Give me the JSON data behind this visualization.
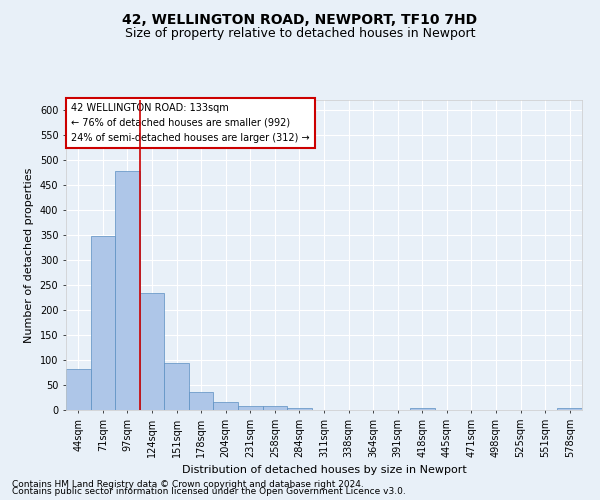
{
  "title_line1": "42, WELLINGTON ROAD, NEWPORT, TF10 7HD",
  "title_line2": "Size of property relative to detached houses in Newport",
  "xlabel": "Distribution of detached houses by size in Newport",
  "ylabel": "Number of detached properties",
  "categories": [
    "44sqm",
    "71sqm",
    "97sqm",
    "124sqm",
    "151sqm",
    "178sqm",
    "204sqm",
    "231sqm",
    "258sqm",
    "284sqm",
    "311sqm",
    "338sqm",
    "364sqm",
    "391sqm",
    "418sqm",
    "445sqm",
    "471sqm",
    "498sqm",
    "525sqm",
    "551sqm",
    "578sqm"
  ],
  "values": [
    82,
    349,
    479,
    234,
    95,
    37,
    17,
    8,
    8,
    5,
    0,
    0,
    0,
    0,
    5,
    0,
    0,
    0,
    0,
    0,
    5
  ],
  "bar_color": "#aec6e8",
  "bar_edge_color": "#5a8fc2",
  "vline_x_index": 2.5,
  "vline_color": "#cc0000",
  "annotation_text": "42 WELLINGTON ROAD: 133sqm\n← 76% of detached houses are smaller (992)\n24% of semi-detached houses are larger (312) →",
  "annotation_box_color": "#ffffff",
  "annotation_box_edge": "#cc0000",
  "ylim": [
    0,
    620
  ],
  "yticks": [
    0,
    50,
    100,
    150,
    200,
    250,
    300,
    350,
    400,
    450,
    500,
    550,
    600
  ],
  "footer_line1": "Contains HM Land Registry data © Crown copyright and database right 2024.",
  "footer_line2": "Contains public sector information licensed under the Open Government Licence v3.0.",
  "background_color": "#e8f0f8",
  "plot_bg_color": "#e8f0f8",
  "grid_color": "#ffffff",
  "title_fontsize": 10,
  "subtitle_fontsize": 9,
  "label_fontsize": 8,
  "tick_fontsize": 7,
  "footer_fontsize": 6.5,
  "annotation_fontsize": 7
}
